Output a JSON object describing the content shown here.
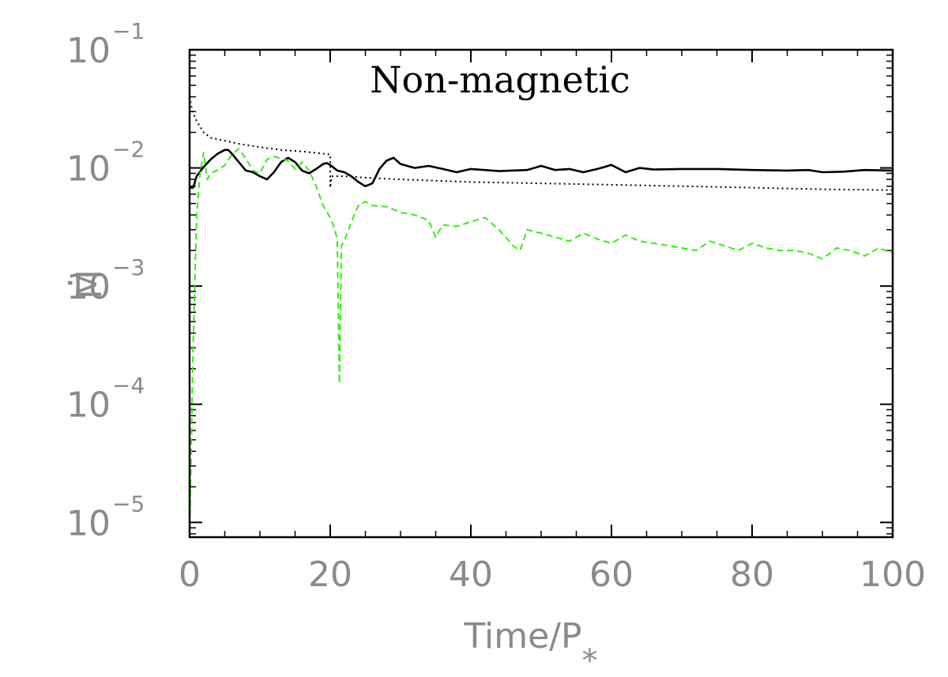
{
  "chart_data": {
    "type": "line",
    "title": "Non-magnetic",
    "xlabel": "Time/P",
    "xlabel_sub": "*",
    "ylabel": "M",
    "ylabel_accent": "·",
    "xlim": [
      0,
      100
    ],
    "ylim": [
      7.5e-06,
      0.1
    ],
    "y_scale": "log",
    "grid": false,
    "x_ticks": [
      {
        "value": 0,
        "label": "0"
      },
      {
        "value": 20,
        "label": "20"
      },
      {
        "value": 40,
        "label": "40"
      },
      {
        "value": 60,
        "label": "60"
      },
      {
        "value": 80,
        "label": "80"
      },
      {
        "value": 100,
        "label": "100"
      }
    ],
    "y_ticks": [
      {
        "value": 0.1,
        "base": "10",
        "exp": "−1"
      },
      {
        "value": 0.01,
        "base": "10",
        "exp": "−2"
      },
      {
        "value": 0.001,
        "base": "10",
        "exp": "−3"
      },
      {
        "value": 0.0001,
        "base": "10",
        "exp": "−4"
      },
      {
        "value": 1e-05,
        "base": "10",
        "exp": "−5"
      }
    ],
    "series": [
      {
        "style": "solid",
        "color": "#000000",
        "x": [
          0,
          0.5,
          1,
          2,
          3,
          4,
          5,
          5.5,
          6,
          7,
          8,
          9,
          10,
          11,
          12,
          13,
          14,
          15,
          16,
          17,
          18,
          19,
          19.5,
          20,
          21,
          22,
          23,
          24,
          25,
          26,
          27,
          28,
          29,
          30,
          32,
          34,
          36,
          38,
          40,
          44,
          48,
          50,
          52,
          54,
          56,
          58,
          60,
          62,
          64,
          66,
          70,
          75,
          80,
          85,
          88,
          90,
          93,
          96,
          100
        ],
        "y": [
          0.0068,
          0.0068,
          0.0085,
          0.0102,
          0.0118,
          0.0132,
          0.0142,
          0.0142,
          0.0132,
          0.0112,
          0.0095,
          0.0092,
          0.0085,
          0.008,
          0.0092,
          0.0112,
          0.0122,
          0.0112,
          0.0095,
          0.009,
          0.0098,
          0.0108,
          0.011,
          0.0106,
          0.0095,
          0.0092,
          0.0085,
          0.0076,
          0.007,
          0.0074,
          0.0098,
          0.0115,
          0.0122,
          0.0108,
          0.01,
          0.0104,
          0.0098,
          0.0092,
          0.0098,
          0.0094,
          0.0096,
          0.0104,
          0.0096,
          0.0098,
          0.0092,
          0.0098,
          0.0106,
          0.0092,
          0.01,
          0.0097,
          0.0098,
          0.0098,
          0.0096,
          0.0095,
          0.0096,
          0.0092,
          0.0093,
          0.0096,
          0.0095
        ]
      },
      {
        "style": "dotted",
        "color": "#000000",
        "x": [
          0,
          0.4,
          1,
          2,
          3,
          5,
          7,
          10,
          13,
          16,
          19,
          20,
          20,
          20.2,
          22,
          26,
          30,
          40,
          50,
          60,
          70,
          80,
          90,
          100
        ],
        "y": [
          0.04,
          0.03,
          0.025,
          0.02,
          0.018,
          0.017,
          0.016,
          0.015,
          0.0142,
          0.0138,
          0.0132,
          0.013,
          0.0068,
          0.0085,
          0.0085,
          0.0082,
          0.008,
          0.0076,
          0.0074,
          0.0072,
          0.007,
          0.0068,
          0.0066,
          0.0065
        ]
      },
      {
        "style": "dashed",
        "color": "#33ee11",
        "x": [
          0,
          0.5,
          1,
          1.5,
          2,
          2.5,
          3,
          4,
          5,
          6,
          7,
          8,
          9,
          10,
          11,
          12,
          13,
          14,
          15,
          16,
          17,
          18,
          19,
          20,
          20.5,
          21,
          21.3,
          21.6,
          22,
          23,
          24,
          25,
          26,
          28,
          30,
          32,
          34,
          35,
          36,
          38,
          40,
          42,
          44,
          46,
          47,
          48,
          50,
          52,
          54,
          56,
          58,
          60,
          62,
          64,
          66,
          68,
          70,
          72,
          74,
          76,
          78,
          80,
          82,
          84,
          86,
          88,
          90,
          92,
          94,
          96,
          98,
          100
        ],
        "y": [
          7.5e-06,
          0.0003,
          0.004,
          0.009,
          0.0135,
          0.008,
          0.009,
          0.0096,
          0.0105,
          0.013,
          0.0145,
          0.012,
          0.0095,
          0.009,
          0.0118,
          0.0125,
          0.012,
          0.0115,
          0.0098,
          0.0112,
          0.0095,
          0.007,
          0.0048,
          0.0038,
          0.0032,
          0.0025,
          0.00015,
          0.0022,
          0.0024,
          0.0035,
          0.0048,
          0.0052,
          0.0048,
          0.0047,
          0.0042,
          0.004,
          0.0036,
          0.0026,
          0.0033,
          0.0032,
          0.0035,
          0.0038,
          0.003,
          0.0022,
          0.002,
          0.003,
          0.0028,
          0.0026,
          0.0024,
          0.0028,
          0.0025,
          0.0023,
          0.0027,
          0.0024,
          0.0023,
          0.0022,
          0.0021,
          0.002,
          0.0024,
          0.0022,
          0.002,
          0.0023,
          0.0021,
          0.002,
          0.002,
          0.0019,
          0.0017,
          0.0021,
          0.002,
          0.0018,
          0.0021,
          0.0019
        ]
      }
    ]
  }
}
